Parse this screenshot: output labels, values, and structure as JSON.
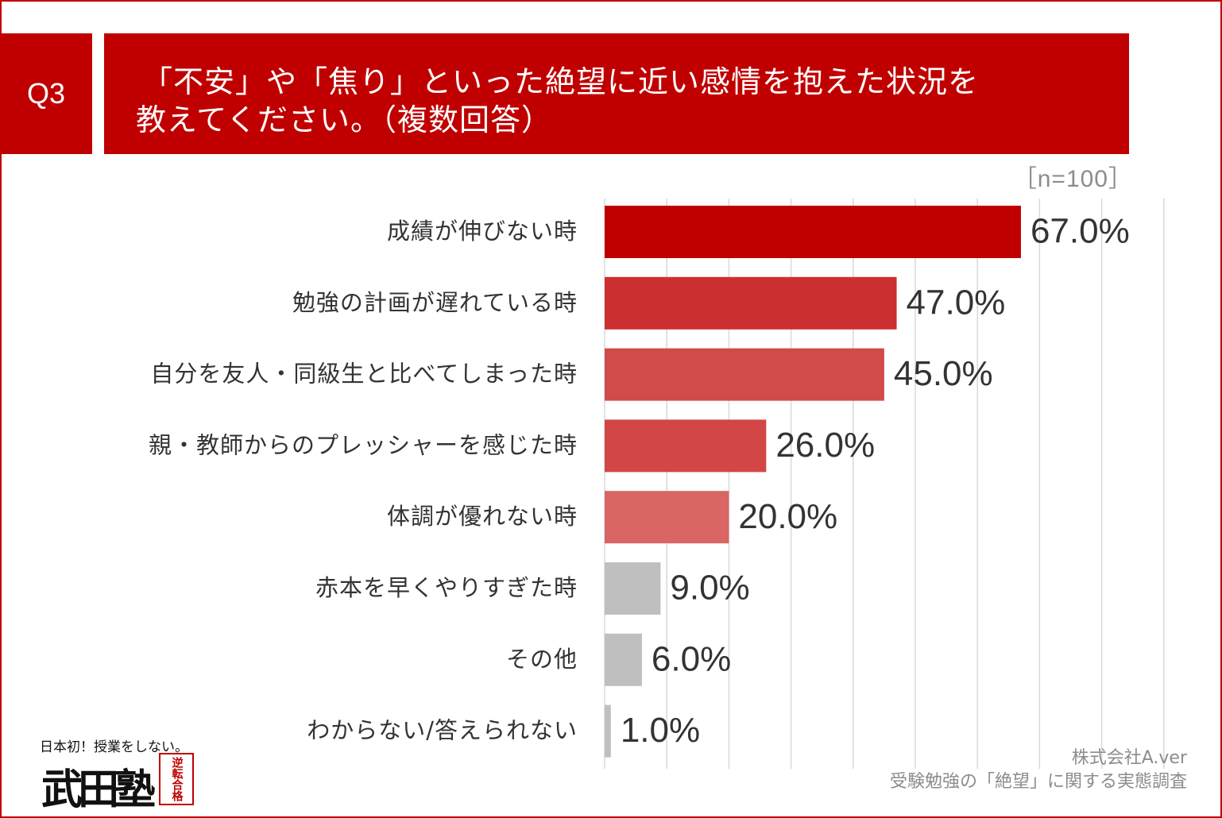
{
  "question": {
    "badge": "Q3",
    "line1": "「不安」や「焦り」といった絶望に近い感情を抱えた状況を",
    "line2": "教えてください。（複数回答）"
  },
  "sample_size": "［n=100］",
  "chart_data": {
    "type": "bar",
    "orientation": "horizontal",
    "title": "「不安」や「焦り」といった絶望に近い感情を抱えた状況を教えてください。（複数回答）",
    "xlabel": "",
    "ylabel": "",
    "xlim": [
      0,
      100
    ],
    "grid": true,
    "unit": "%",
    "categories": [
      "成績が伸びない時",
      "勉強の計画が遅れている時",
      "自分を友人・同級生と比べてしまった時",
      "親・教師からのプレッシャーを感じた時",
      "体調が優れない時",
      "赤本を早くやりすぎた時",
      "その他",
      "わからない/答えられない"
    ],
    "values": [
      67.0,
      47.0,
      45.0,
      26.0,
      20.0,
      9.0,
      6.0,
      1.0
    ],
    "value_labels": [
      "67.0%",
      "47.0%",
      "45.0%",
      "26.0%",
      "20.0%",
      "9.0%",
      "6.0%",
      "1.0%"
    ],
    "colors": [
      "#c00000",
      "#cc2f2f",
      "#d24a4a",
      "#d24646",
      "#d96565",
      "#bfbfbf",
      "#bfbfbf",
      "#bfbfbf"
    ]
  },
  "logo": {
    "tagline": "日本初！授業をしない。",
    "name": "武田塾",
    "stamp": "逆転合格"
  },
  "credit": {
    "company": "株式会社A.ver",
    "survey": "受験勉強の「絶望」に関する実態調査"
  },
  "colors": {
    "accent": "#c00000",
    "grid": "#d9d9d9",
    "label_text": "#333333",
    "muted_text": "#8c8c8c"
  }
}
